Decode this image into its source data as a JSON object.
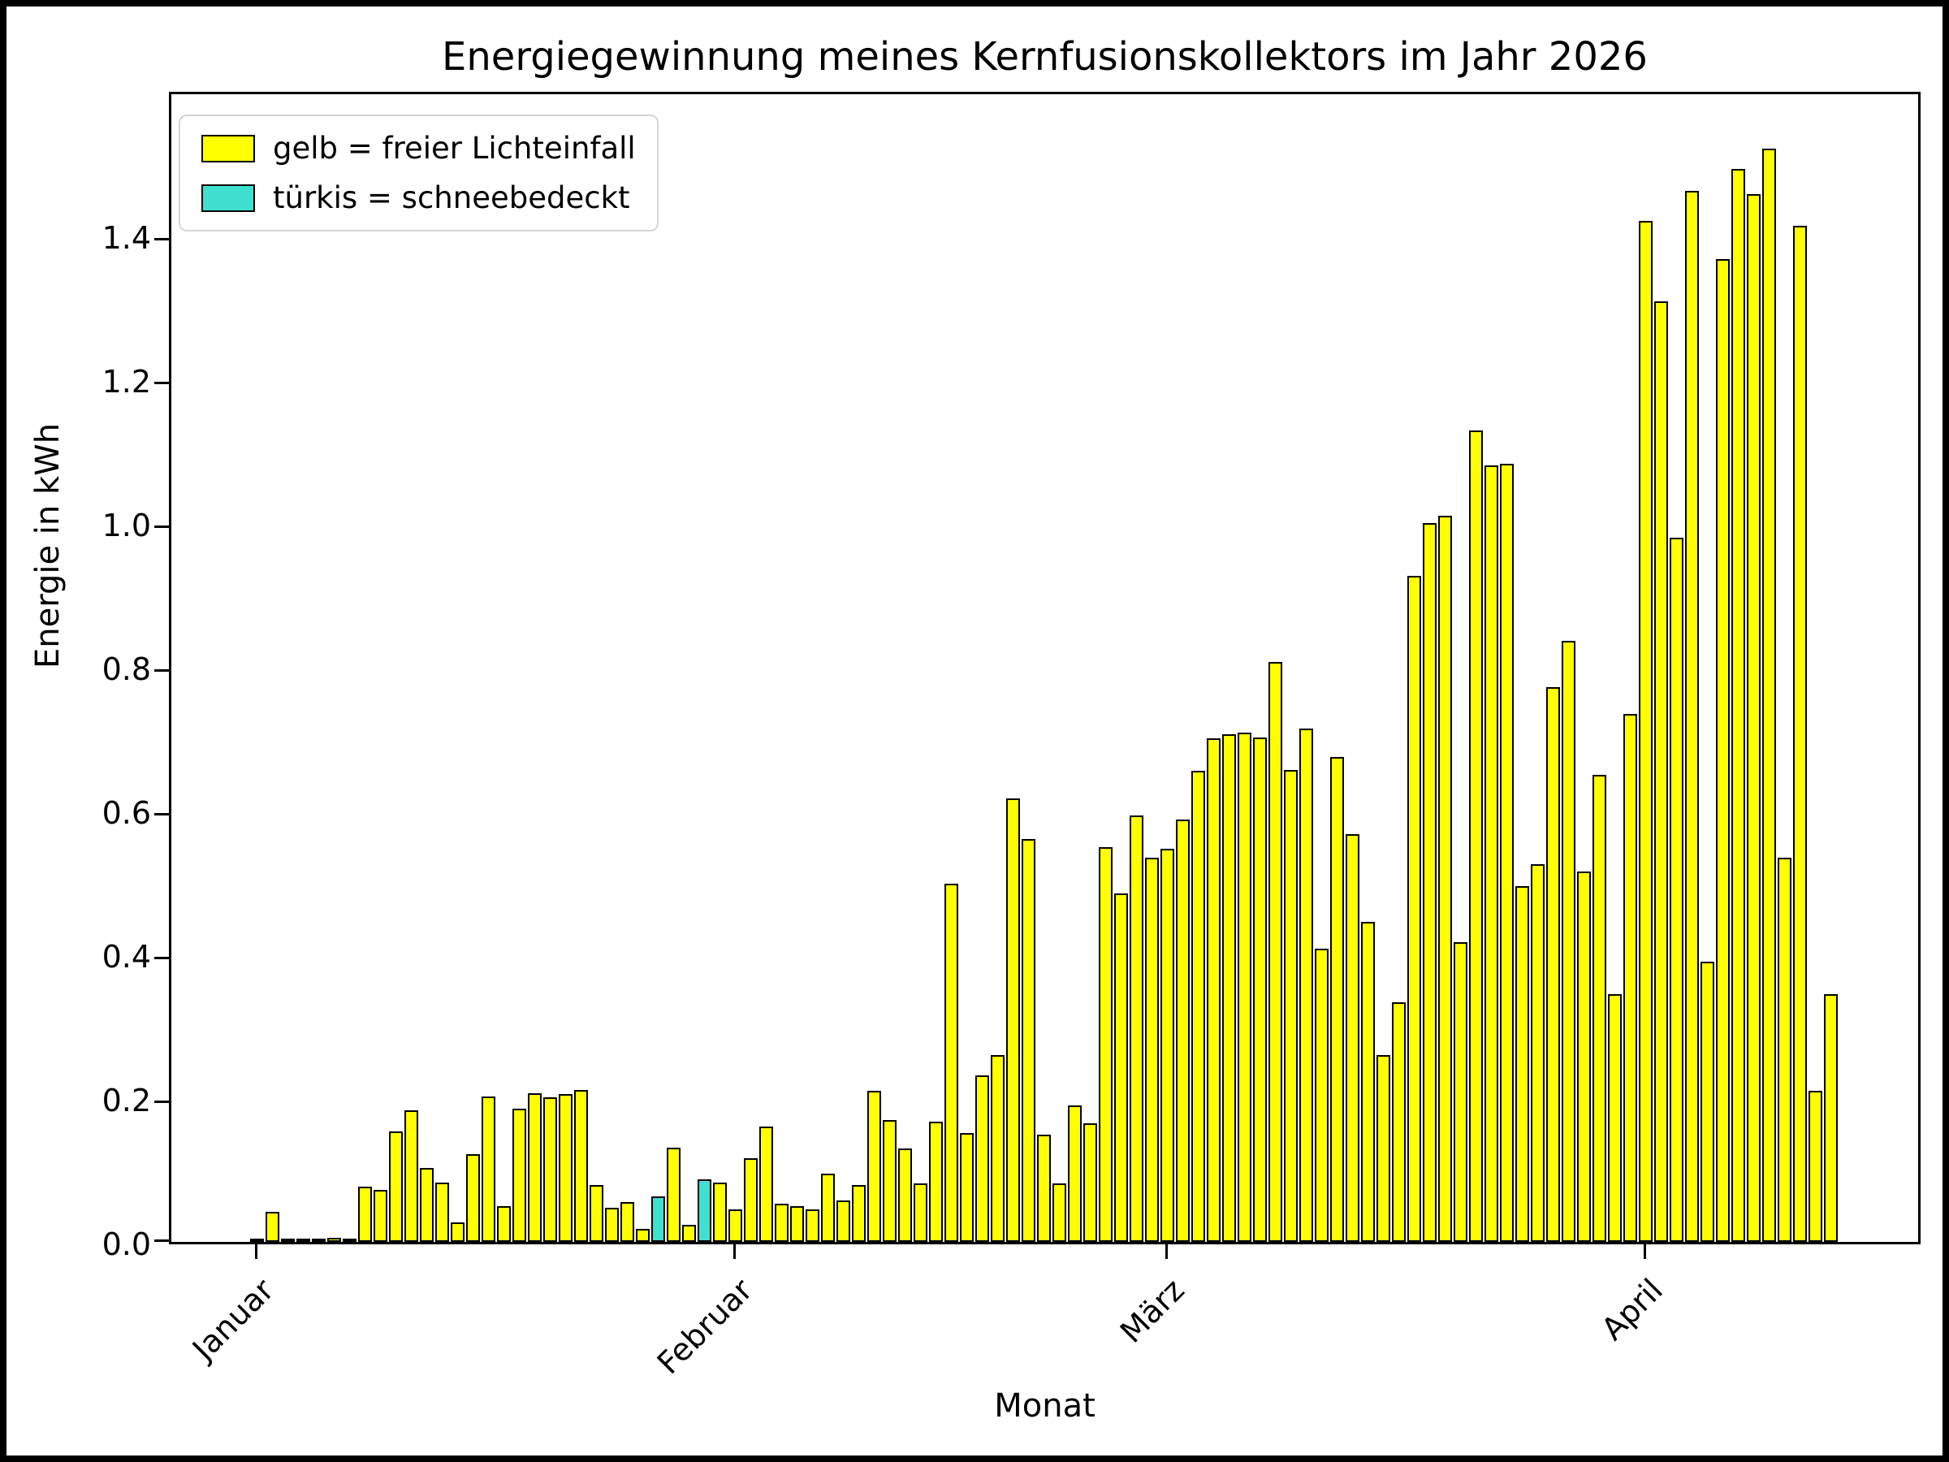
{
  "title": "Energiegewinnung meines Kernfusionskollektors im Jahr 2026",
  "legend": {
    "items": [
      {
        "label": "gelb = freier Lichteinfall",
        "color": "#ffff00"
      },
      {
        "label": "türkis = schneebedeckt",
        "color": "#40e0d0"
      }
    ]
  },
  "colors": {
    "bar_free": "#ffff00",
    "bar_snow": "#40e0d0",
    "bar_edge": "#000000",
    "frame": "#000000"
  },
  "chart_data": {
    "type": "bar",
    "title": "Energiegewinnung meines Kernfusionskollektors im Jahr 2026",
    "xlabel": "Monat",
    "ylabel": "Energie in kWh",
    "ylim": [
      0,
      1.6
    ],
    "grid": false,
    "legend_position": "upper left",
    "unit": "kWh per day, daily bars from 2026-01-01 to 2026-04-13",
    "yticks": [
      "0.0",
      "0.2",
      "0.4",
      "0.6",
      "0.8",
      "1.0",
      "1.2",
      "1.4"
    ],
    "xticks": [
      {
        "label": "Januar",
        "day": 0
      },
      {
        "label": "Februar",
        "day": 31
      },
      {
        "label": "März",
        "day": 59
      },
      {
        "label": "April",
        "day": 90
      }
    ],
    "snow_day_indices": [
      26,
      29
    ],
    "values": [
      0.003,
      0.042,
      0.004,
      0.002,
      0.003,
      0.006,
      0.005,
      0.077,
      0.072,
      0.154,
      0.183,
      0.103,
      0.082,
      0.027,
      0.122,
      0.202,
      0.05,
      0.185,
      0.207,
      0.201,
      0.206,
      0.211,
      0.079,
      0.048,
      0.055,
      0.018,
      0.063,
      0.131,
      0.024,
      0.087,
      0.082,
      0.045,
      0.116,
      0.161,
      0.053,
      0.05,
      0.045,
      0.095,
      0.058,
      0.079,
      0.21,
      0.169,
      0.13,
      0.081,
      0.167,
      0.498,
      0.151,
      0.232,
      0.26,
      0.617,
      0.56,
      0.149,
      0.081,
      0.19,
      0.165,
      0.549,
      0.485,
      0.593,
      0.534,
      0.547,
      0.588,
      0.655,
      0.701,
      0.706,
      0.709,
      0.702,
      0.807,
      0.656,
      0.714,
      0.408,
      0.675,
      0.567,
      0.445,
      0.26,
      0.333,
      0.927,
      1.0,
      1.01,
      0.417,
      1.129,
      1.08,
      1.083,
      0.495,
      0.525,
      0.772,
      0.836,
      0.515,
      0.65,
      0.345,
      0.734,
      1.42,
      1.308,
      0.98,
      1.462,
      0.39,
      1.367,
      1.493,
      1.458,
      1.521,
      0.535,
      1.414,
      0.21,
      0.345
    ]
  }
}
